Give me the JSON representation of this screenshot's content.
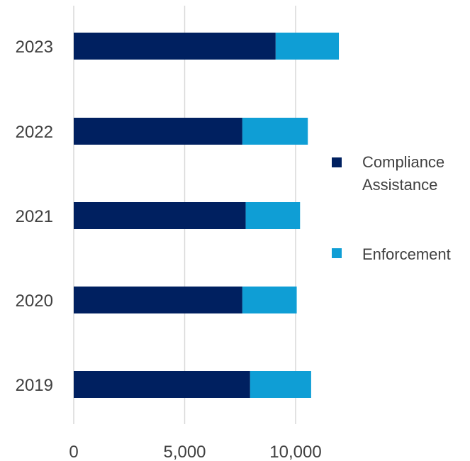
{
  "chart_data": {
    "type": "bar",
    "orientation": "horizontal",
    "stacked": true,
    "categories": [
      "2023",
      "2022",
      "2021",
      "2020",
      "2019"
    ],
    "series": [
      {
        "name": "Compliance Assistance",
        "values": [
          9100,
          7600,
          7750,
          7600,
          7950
        ],
        "color": "#002060"
      },
      {
        "name": "Enforcement",
        "values": [
          2850,
          2950,
          2450,
          2450,
          2750
        ],
        "color": "#0f9ed5"
      }
    ],
    "x_ticks": [
      "0",
      "5,000",
      "10,000"
    ],
    "xlim": [
      0,
      15000
    ],
    "title": "",
    "xlabel": "",
    "ylabel": "",
    "grid": "vertical",
    "legend": "right"
  }
}
